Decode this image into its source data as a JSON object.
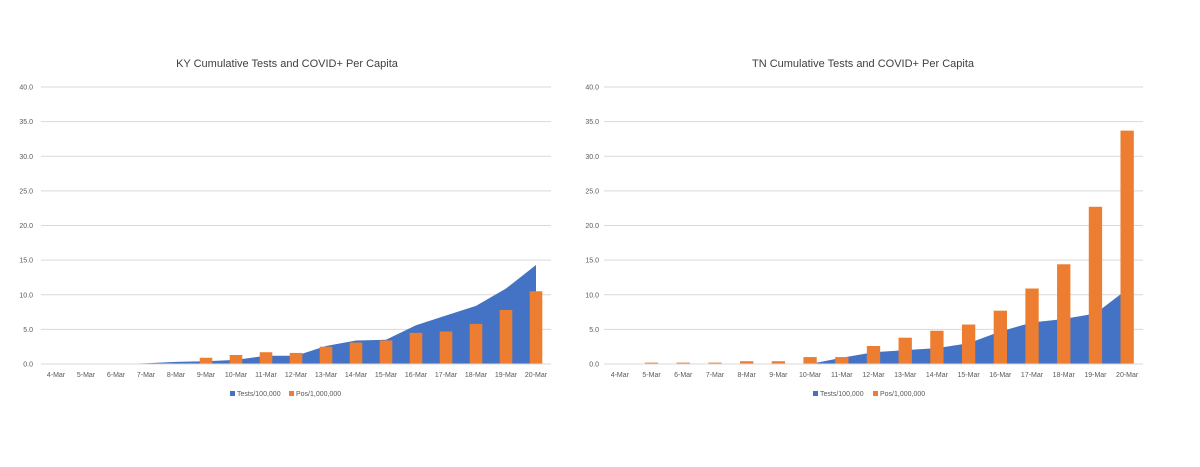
{
  "chart_data": [
    {
      "type": "bar",
      "title": "KY Cumulative Tests and COVID+ Per Capita",
      "categories": [
        "4-Mar",
        "5-Mar",
        "6-Mar",
        "7-Mar",
        "8-Mar",
        "9-Mar",
        "10-Mar",
        "11-Mar",
        "12-Mar",
        "13-Mar",
        "14-Mar",
        "15-Mar",
        "16-Mar",
        "17-Mar",
        "18-Mar",
        "19-Mar",
        "20-Mar"
      ],
      "y_ticks": [
        "0.0",
        "5.0",
        "10.0",
        "15.0",
        "20.0",
        "25.0",
        "30.0",
        "35.0",
        "40.0"
      ],
      "ylim": [
        0,
        40
      ],
      "grid": true,
      "legend_position": "bottom",
      "series": [
        {
          "name": "Tests/100,000",
          "kind": "area",
          "color": "#4472C4",
          "values": [
            0,
            0,
            0,
            0.1,
            0.3,
            0.4,
            0.6,
            1.2,
            1.2,
            2.6,
            3.4,
            3.5,
            5.6,
            7.0,
            8.4,
            10.9,
            14.3
          ]
        },
        {
          "name": "Pos/1,000,000",
          "kind": "bar",
          "color": "#ED7D31",
          "values": [
            0,
            0,
            0,
            0,
            0,
            0.9,
            1.3,
            1.7,
            1.6,
            2.5,
            3.1,
            3.4,
            4.5,
            4.7,
            5.8,
            7.8,
            10.5
          ]
        }
      ]
    },
    {
      "type": "bar",
      "title": "TN Cumulative Tests and COVID+ Per Capita",
      "categories": [
        "4-Mar",
        "5-Mar",
        "6-Mar",
        "7-Mar",
        "8-Mar",
        "9-Mar",
        "10-Mar",
        "11-Mar",
        "12-Mar",
        "13-Mar",
        "14-Mar",
        "15-Mar",
        "16-Mar",
        "17-Mar",
        "18-Mar",
        "19-Mar",
        "20-Mar"
      ],
      "y_ticks": [
        "0.0",
        "5.0",
        "10.0",
        "15.0",
        "20.0",
        "25.0",
        "30.0",
        "35.0",
        "40.0"
      ],
      "ylim": [
        0,
        40
      ],
      "grid": true,
      "legend_position": "bottom",
      "series": [
        {
          "name": "Tests/100,000",
          "kind": "area",
          "color": "#4472C4",
          "values": [
            0,
            0,
            0,
            0,
            0,
            0,
            0,
            0.9,
            1.7,
            2.0,
            2.3,
            3.0,
            4.7,
            6.0,
            6.5,
            7.3,
            10.8
          ]
        },
        {
          "name": "Pos/1,000,000",
          "kind": "bar",
          "color": "#ED7D31",
          "values": [
            0,
            0.2,
            0.2,
            0.2,
            0.4,
            0.4,
            1.0,
            1.0,
            2.6,
            3.8,
            4.8,
            5.7,
            7.7,
            10.9,
            14.4,
            22.7,
            33.7
          ]
        }
      ]
    }
  ]
}
